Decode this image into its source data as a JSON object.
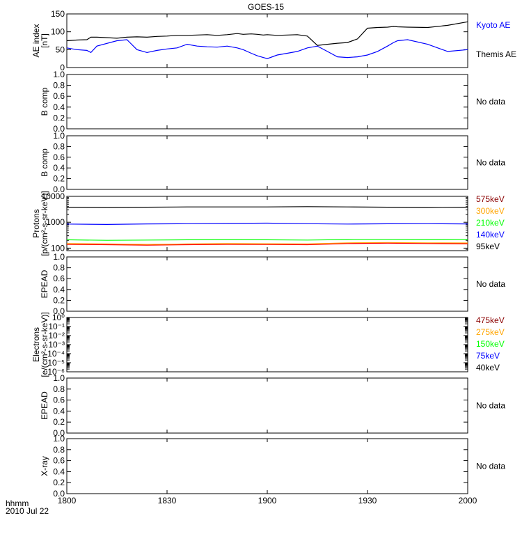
{
  "title": "GOES-15",
  "colors": {
    "frame": "#000000",
    "black": "#000000",
    "blue": "#0000ff",
    "green": "#00ff00",
    "orange": "#ffa500",
    "red": "#ff0000",
    "darkred": "#8b0000"
  },
  "x_axis": {
    "ticks": [
      "1800",
      "1830",
      "1900",
      "1930",
      "2000"
    ],
    "format_label": "hhmm",
    "date_label": "2010 Jul 22"
  },
  "chart_data": [
    {
      "type": "line",
      "ylabel": [
        "AE index",
        "[nT]"
      ],
      "ylim": [
        0,
        150
      ],
      "yticks": [
        0,
        50,
        100,
        150
      ],
      "ytick_labels": [
        "0",
        "50",
        "100",
        "150"
      ],
      "legend": [
        {
          "label": "Kyoto AE",
          "color": "blue"
        },
        {
          "label": "Themis AE",
          "color": "black"
        }
      ],
      "x": [
        0,
        5,
        10,
        12,
        15,
        25,
        30,
        35,
        40,
        45,
        50,
        55,
        60,
        65,
        70,
        75,
        80,
        85,
        88,
        92,
        95,
        98,
        100,
        105,
        110,
        115,
        120,
        125,
        130,
        135,
        140,
        145,
        150,
        155,
        160,
        163,
        165,
        170,
        180,
        190,
        200
      ],
      "series": [
        {
          "name": "Themis AE",
          "color": "black",
          "values": [
            75,
            77,
            78,
            85,
            85,
            82,
            85,
            86,
            85,
            87,
            88,
            90,
            90,
            91,
            92,
            90,
            92,
            95,
            93,
            94,
            93,
            91,
            92,
            90,
            91,
            92,
            88,
            62,
            65,
            68,
            70,
            80,
            110,
            112,
            113,
            115,
            114,
            113,
            112,
            118,
            128
          ]
        },
        {
          "name": "Kyoto AE",
          "color": "blue",
          "values": [
            55,
            50,
            48,
            42,
            60,
            75,
            78,
            50,
            42,
            48,
            52,
            55,
            65,
            60,
            58,
            57,
            60,
            55,
            50,
            40,
            33,
            28,
            25,
            35,
            40,
            45,
            55,
            60,
            45,
            30,
            28,
            30,
            35,
            45,
            60,
            70,
            75,
            78,
            65,
            45,
            50
          ]
        }
      ]
    },
    {
      "type": "line",
      "ylabel": [
        "B comp"
      ],
      "ylim": [
        0,
        1
      ],
      "yticks": [
        0,
        0.2,
        0.4,
        0.6,
        0.8,
        1.0
      ],
      "ytick_labels": [
        "0.0",
        "0.2",
        "0.4",
        "0.6",
        "0.8",
        "1.0"
      ],
      "status": "No data",
      "series": []
    },
    {
      "type": "line",
      "ylabel": [
        "B comp"
      ],
      "ylim": [
        0,
        1
      ],
      "yticks": [
        0,
        0.2,
        0.4,
        0.6,
        0.8,
        1.0
      ],
      "ytick_labels": [
        "0.0",
        "0.2",
        "0.4",
        "0.6",
        "0.8",
        "1.0"
      ],
      "status": "No data",
      "series": []
    },
    {
      "type": "line",
      "ylabel": [
        "Protons",
        "[p/(cm²-s-sr-keV)]"
      ],
      "ylim": [
        80,
        10000
      ],
      "log_scale": true,
      "yticks": [
        100,
        1000,
        10000
      ],
      "ytick_labels": [
        "100",
        "1000",
        "10000"
      ],
      "legend": [
        {
          "label": "575keV",
          "color": "darkred"
        },
        {
          "label": "300keV",
          "color": "orange"
        },
        {
          "label": "210keV",
          "color": "green"
        },
        {
          "label": "140keV",
          "color": "blue"
        },
        {
          "label": "95keV",
          "color": "black"
        }
      ],
      "x": [
        0,
        20,
        40,
        60,
        80,
        100,
        120,
        140,
        160,
        180,
        200
      ],
      "series": [
        {
          "name": "95keV",
          "color": "black",
          "values": [
            3800,
            3700,
            3800,
            3900,
            3900,
            3900,
            4000,
            3900,
            3800,
            3700,
            3800
          ]
        },
        {
          "name": "140keV",
          "color": "blue",
          "values": [
            850,
            820,
            860,
            880,
            900,
            920,
            880,
            850,
            870,
            880,
            860
          ]
        },
        {
          "name": "210keV",
          "color": "green",
          "values": [
            210,
            200,
            205,
            210,
            215,
            210,
            205,
            215,
            220,
            215,
            220
          ]
        },
        {
          "name": "300keV",
          "color": "orange",
          "values": [
            150,
            145,
            140,
            145,
            150,
            148,
            145,
            160,
            165,
            160,
            158
          ]
        },
        {
          "name": "575keV",
          "color": "red",
          "values": [
            140,
            135,
            130,
            135,
            140,
            138,
            135,
            150,
            155,
            150,
            148
          ]
        }
      ]
    },
    {
      "type": "line",
      "ylabel": [
        "EPEAD"
      ],
      "ylim": [
        0,
        1
      ],
      "yticks": [
        0,
        0.2,
        0.4,
        0.6,
        0.8,
        1.0
      ],
      "ytick_labels": [
        "0.0",
        "0.2",
        "0.4",
        "0.6",
        "0.8",
        "1.0"
      ],
      "status": "No data",
      "series": []
    },
    {
      "type": "line",
      "ylabel": [
        "Electrons",
        "[e/(cm²-s-sr-keV)]"
      ],
      "ylim": [
        -6,
        0
      ],
      "log_scale": true,
      "yticks": [
        0,
        -1,
        -2,
        -3,
        -4,
        -5,
        -6
      ],
      "ytick_labels": [
        "10⁰",
        "10⁻¹",
        "10⁻²",
        "10⁻³",
        "10⁻⁴",
        "10⁻⁵",
        "10⁻⁶"
      ],
      "legend": [
        {
          "label": "475keV",
          "color": "darkred"
        },
        {
          "label": "275keV",
          "color": "orange"
        },
        {
          "label": "150keV",
          "color": "green"
        },
        {
          "label": "75keV",
          "color": "blue"
        },
        {
          "label": "40keV",
          "color": "black"
        }
      ],
      "series": []
    },
    {
      "type": "line",
      "ylabel": [
        "EPEAD"
      ],
      "ylim": [
        0,
        1
      ],
      "yticks": [
        0,
        0.2,
        0.4,
        0.6,
        0.8,
        1.0
      ],
      "ytick_labels": [
        "0.0",
        "0.2",
        "0.4",
        "0.6",
        "0.8",
        "1.0"
      ],
      "status": "No data",
      "series": []
    },
    {
      "type": "line",
      "ylabel": [
        "X-ray"
      ],
      "ylim": [
        0,
        1
      ],
      "yticks": [
        0,
        0.2,
        0.4,
        0.6,
        0.8,
        1.0
      ],
      "ytick_labels": [
        "0.0",
        "0.2",
        "0.4",
        "0.6",
        "0.8",
        "1.0"
      ],
      "status": "No data",
      "series": []
    }
  ]
}
